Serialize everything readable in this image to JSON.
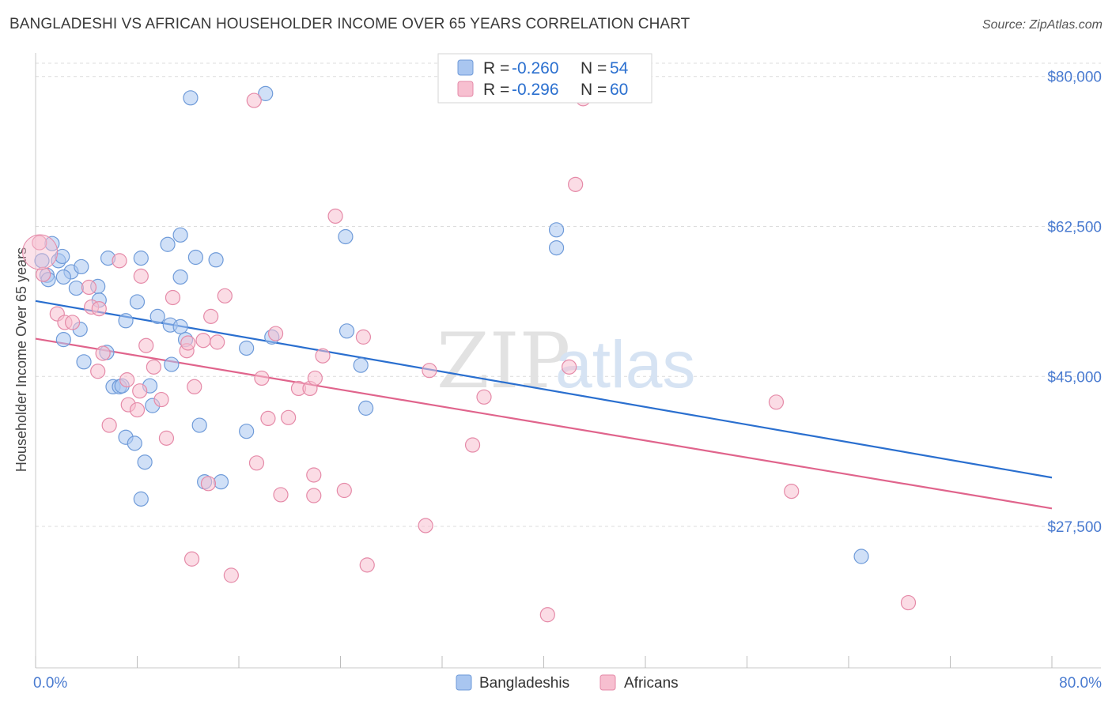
{
  "header": {
    "title": "BANGLADESHI VS AFRICAN HOUSEHOLDER INCOME OVER 65 YEARS CORRELATION CHART",
    "source": "Source: ZipAtlas.com"
  },
  "watermark": {
    "part1": "ZIP",
    "part2": "atlas"
  },
  "legend_stats": [
    {
      "r_label": "R = ",
      "r_value": "-0.260",
      "n_label": "N = ",
      "n_value": "54",
      "color": "#a9c6f0",
      "stroke": "#6f9bd9"
    },
    {
      "r_label": "R = ",
      "r_value": "-0.296",
      "n_label": "N = ",
      "n_value": "60",
      "color": "#f7bfd0",
      "stroke": "#e58aa8"
    }
  ],
  "bottom_legend": [
    {
      "label": "Bangladeshis",
      "color": "#a9c6f0",
      "stroke": "#6f9bd9"
    },
    {
      "label": "Africans",
      "color": "#f7bfd0",
      "stroke": "#e58aa8"
    }
  ],
  "chart_data": {
    "type": "scatter",
    "title": "BANGLADESHI VS AFRICAN HOUSEHOLDER INCOME OVER 65 YEARS CORRELATION CHART",
    "xlabel": "",
    "ylabel": "Householder Income Over 65 years",
    "xlim": [
      0,
      80
    ],
    "ylim": [
      11000,
      82000
    ],
    "x_tick_labels": [
      "0.0%",
      "80.0%"
    ],
    "y_ticks": [
      27500,
      45000,
      62500,
      80000
    ],
    "y_tick_labels": [
      "$27,500",
      "$45,000",
      "$62,500",
      "$80,000"
    ],
    "grid": true,
    "legend_position": "top-center",
    "series": [
      {
        "name": "Bangladeshis",
        "color": "#6f9bd9",
        "fill": "#a9c6f0",
        "line_color": "#2a6fcf",
        "trend": {
          "x": [
            0,
            80
          ],
          "y": [
            53800,
            33200
          ]
        },
        "points": [
          [
            0.5,
            58500
          ],
          [
            1.3,
            60500
          ],
          [
            0.9,
            56800
          ],
          [
            1.8,
            58500
          ],
          [
            2.8,
            57200
          ],
          [
            3.6,
            57800
          ],
          [
            2.2,
            56600
          ],
          [
            3.2,
            55300
          ],
          [
            4.9,
            55500
          ],
          [
            5.7,
            58800
          ],
          [
            8.3,
            58800
          ],
          [
            10.4,
            60400
          ],
          [
            11.4,
            61500
          ],
          [
            12.6,
            58900
          ],
          [
            14.2,
            58600
          ],
          [
            24.4,
            61300
          ],
          [
            12.2,
            77500
          ],
          [
            18.1,
            78000
          ],
          [
            41.0,
            60000
          ],
          [
            5.0,
            53900
          ],
          [
            8.0,
            53700
          ],
          [
            9.6,
            52000
          ],
          [
            3.5,
            50500
          ],
          [
            7.1,
            51500
          ],
          [
            10.6,
            51000
          ],
          [
            11.4,
            50800
          ],
          [
            11.8,
            49300
          ],
          [
            16.6,
            48300
          ],
          [
            18.6,
            49600
          ],
          [
            24.5,
            50300
          ],
          [
            2.2,
            49300
          ],
          [
            3.8,
            46700
          ],
          [
            5.6,
            47800
          ],
          [
            10.7,
            46400
          ],
          [
            25.6,
            46300
          ],
          [
            6.1,
            43800
          ],
          [
            6.6,
            43800
          ],
          [
            9.0,
            43900
          ],
          [
            9.2,
            41600
          ],
          [
            26.0,
            41300
          ],
          [
            12.9,
            39300
          ],
          [
            16.6,
            38600
          ],
          [
            7.1,
            37900
          ],
          [
            7.8,
            37200
          ],
          [
            8.6,
            35000
          ],
          [
            13.3,
            32700
          ],
          [
            14.6,
            32700
          ],
          [
            8.3,
            30700
          ],
          [
            41.0,
            62100
          ],
          [
            11.4,
            56600
          ],
          [
            1.0,
            56300
          ],
          [
            2.1,
            59000
          ],
          [
            6.8,
            43900
          ],
          [
            65.0,
            24000
          ]
        ]
      },
      {
        "name": "Africans",
        "color": "#e58aa8",
        "fill": "#f7bfd0",
        "line_color": "#e0648c",
        "trend": {
          "x": [
            0,
            80
          ],
          "y": [
            49400,
            29600
          ]
        },
        "points": [
          [
            0.3,
            60600
          ],
          [
            0.6,
            56900
          ],
          [
            1.7,
            52300
          ],
          [
            2.3,
            51300
          ],
          [
            4.2,
            55400
          ],
          [
            4.4,
            53100
          ],
          [
            5.0,
            52900
          ],
          [
            6.6,
            58500
          ],
          [
            8.3,
            56700
          ],
          [
            10.8,
            54200
          ],
          [
            14.9,
            54400
          ],
          [
            13.8,
            52000
          ],
          [
            17.2,
            77200
          ],
          [
            43.1,
            77400
          ],
          [
            42.5,
            67400
          ],
          [
            23.6,
            63700
          ],
          [
            2.9,
            51300
          ],
          [
            5.3,
            47700
          ],
          [
            7.2,
            44600
          ],
          [
            8.7,
            48600
          ],
          [
            9.3,
            46100
          ],
          [
            11.9,
            48000
          ],
          [
            12.0,
            48900
          ],
          [
            13.2,
            49200
          ],
          [
            14.3,
            49000
          ],
          [
            18.9,
            50000
          ],
          [
            25.8,
            49600
          ],
          [
            22.6,
            47400
          ],
          [
            42.0,
            46100
          ],
          [
            31.0,
            45700
          ],
          [
            4.9,
            45600
          ],
          [
            12.5,
            43800
          ],
          [
            17.8,
            44800
          ],
          [
            20.7,
            43600
          ],
          [
            21.6,
            43600
          ],
          [
            22.0,
            44800
          ],
          [
            35.3,
            42600
          ],
          [
            58.3,
            42000
          ],
          [
            7.3,
            41700
          ],
          [
            8.0,
            41100
          ],
          [
            9.9,
            42300
          ],
          [
            18.3,
            40100
          ],
          [
            19.9,
            40200
          ],
          [
            5.8,
            39300
          ],
          [
            10.3,
            37800
          ],
          [
            34.4,
            37000
          ],
          [
            17.4,
            34900
          ],
          [
            21.9,
            33500
          ],
          [
            13.6,
            32500
          ],
          [
            19.3,
            31200
          ],
          [
            21.9,
            31100
          ],
          [
            24.3,
            31700
          ],
          [
            59.5,
            31600
          ],
          [
            30.7,
            27600
          ],
          [
            12.3,
            23700
          ],
          [
            15.4,
            21800
          ],
          [
            26.1,
            23000
          ],
          [
            40.3,
            17200
          ],
          [
            68.7,
            18600
          ],
          [
            8.2,
            43300
          ]
        ]
      }
    ]
  }
}
